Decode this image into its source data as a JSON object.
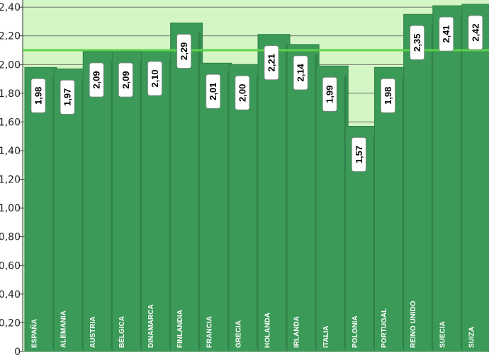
{
  "chart_data": {
    "type": "bar",
    "categories": [
      "ESPAÑA",
      "ALEMANIA",
      "AUSTRIA",
      "BÉLGICA",
      "DINAMARCA",
      "FINLANDIA",
      "FRANCIA",
      "GRECIA",
      "HOLANDA",
      "IRLANDA",
      "ITALIA",
      "POLONIA",
      "PORTUGAL",
      "REINO UNIDO",
      "SUECIA",
      "SUIZA"
    ],
    "values": [
      1.98,
      1.97,
      2.09,
      2.09,
      2.1,
      2.29,
      2.01,
      2.0,
      2.21,
      2.14,
      1.99,
      1.57,
      1.98,
      2.35,
      2.41,
      2.42
    ],
    "value_labels": [
      "1,98",
      "1,97",
      "2,09",
      "2,09",
      "2,10",
      "2,29",
      "2,01",
      "2,00",
      "2,21",
      "2,14",
      "1,99",
      "1,57",
      "1,98",
      "2,35",
      "2,41",
      "2,42"
    ],
    "ylim": [
      0,
      2.45
    ],
    "yticks": [
      0,
      0.2,
      0.4,
      0.6,
      0.8,
      1.0,
      1.2,
      1.4,
      1.6,
      1.8,
      2.0,
      2.2,
      2.4
    ],
    "ytick_labels": [
      "0",
      "0,20",
      "0,40",
      "0,60",
      "0,80",
      "1,00",
      "1,20",
      "1,40",
      "1,60",
      "1,80",
      "2,00",
      "2,20",
      "2,40"
    ],
    "reference_line": 2.1,
    "grid": true,
    "colors": {
      "background": "#d4f6c4",
      "bar": "#3b9a57",
      "bar_dark": "#2f8049",
      "reference_line": "#5bd24a",
      "grid": "#4a4a4a"
    }
  }
}
